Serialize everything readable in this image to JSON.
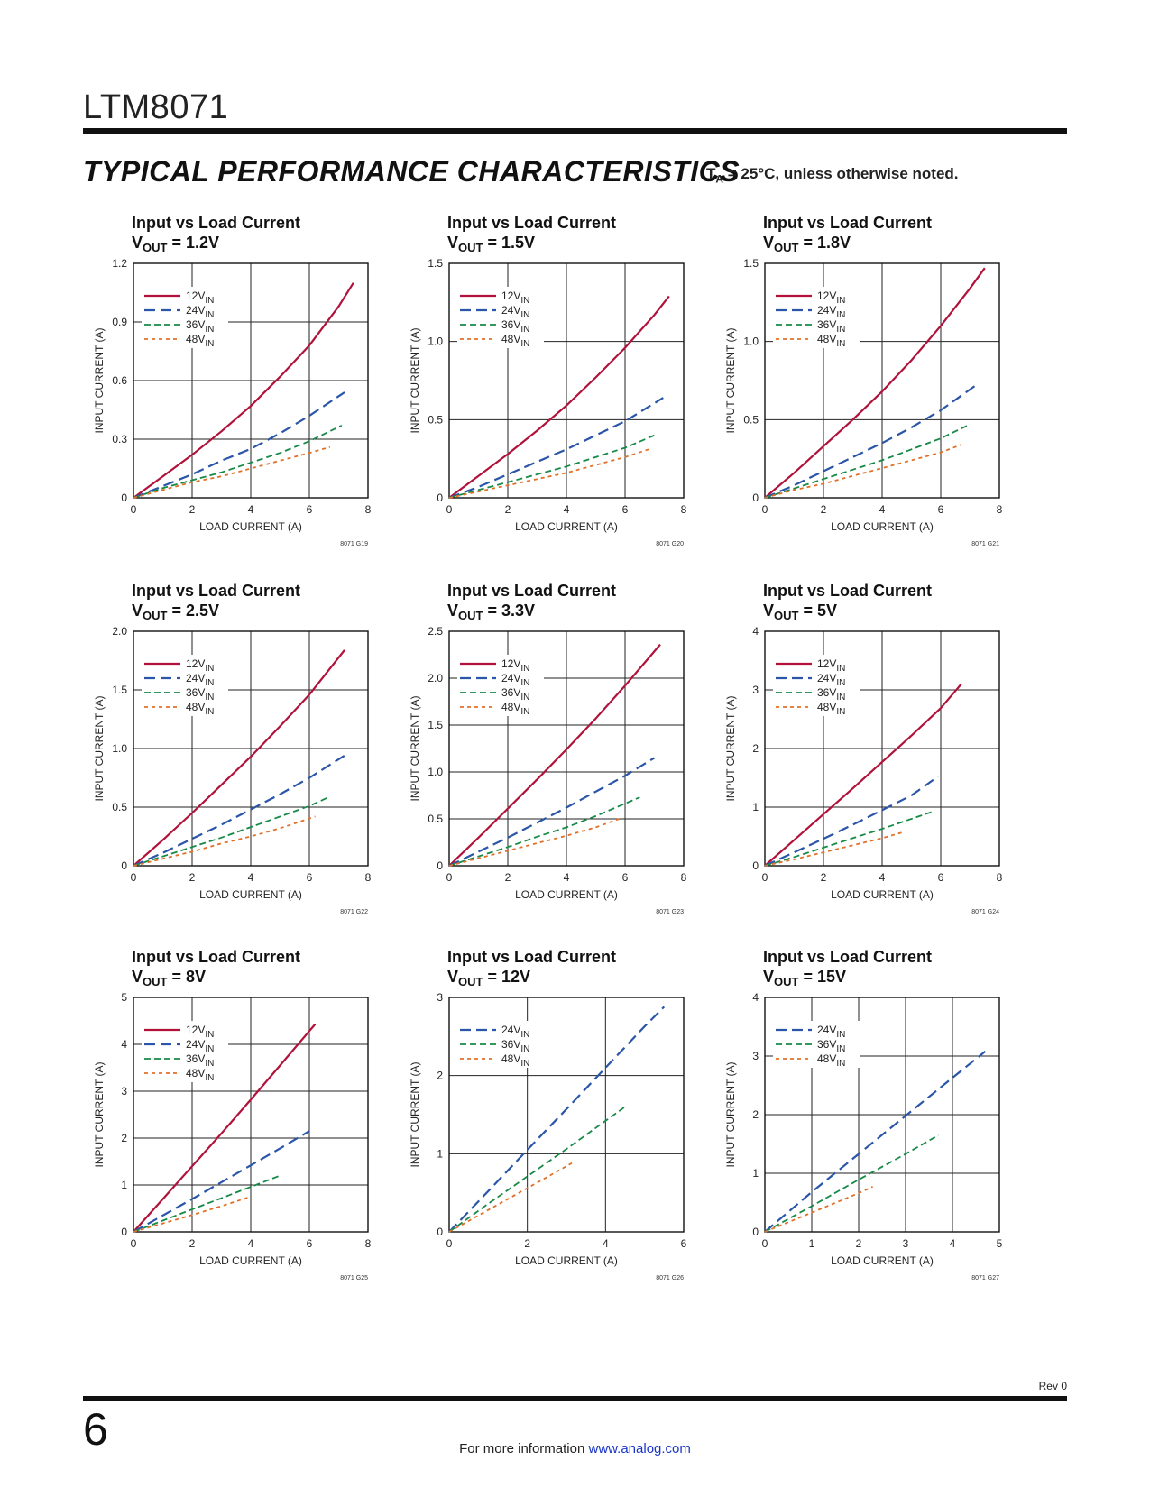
{
  "header": {
    "part_number": "LTM8071",
    "section_title": "TYPICAL PERFORMANCE CHARACTERISTICS",
    "conditions_main": "T",
    "conditions_sub": "A",
    "conditions_rest": " = 25°C, unless otherwise noted."
  },
  "colors": {
    "12VIN": "#b0123a",
    "24VIN": "#2a55a8",
    "36VIN": "#188a48",
    "48VIN": "#e07028"
  },
  "chart_data": [
    {
      "type": "line",
      "title": "Input vs Load Current",
      "vout": "1.2V",
      "xlabel": "LOAD CURRENT (A)",
      "ylabel": "INPUT CURRENT (A)",
      "xlim": [
        0,
        8
      ],
      "ylim": [
        0,
        1.2
      ],
      "xticks": [
        "0",
        "2",
        "4",
        "6",
        "8"
      ],
      "yticks": [
        "0",
        "0.3",
        "0.6",
        "0.9",
        "1.2"
      ],
      "code": "8071 G19",
      "series": [
        {
          "name": "12VIN",
          "x": [
            0,
            1,
            2,
            3,
            4,
            5,
            6,
            7,
            7.5
          ],
          "y": [
            0,
            0.11,
            0.22,
            0.34,
            0.47,
            0.62,
            0.78,
            0.98,
            1.1
          ]
        },
        {
          "name": "24VIN",
          "x": [
            0,
            1,
            2,
            3,
            4,
            5,
            6,
            7.2
          ],
          "y": [
            0,
            0.06,
            0.12,
            0.19,
            0.25,
            0.33,
            0.42,
            0.54
          ]
        },
        {
          "name": "36VIN",
          "x": [
            0,
            1,
            2,
            3,
            4,
            5,
            6,
            7.1
          ],
          "y": [
            0,
            0.05,
            0.09,
            0.13,
            0.18,
            0.23,
            0.29,
            0.37
          ]
        },
        {
          "name": "48VIN",
          "x": [
            0,
            1,
            2,
            3,
            4,
            5,
            6,
            6.7
          ],
          "y": [
            0,
            0.04,
            0.08,
            0.11,
            0.15,
            0.19,
            0.23,
            0.26
          ]
        }
      ]
    },
    {
      "type": "line",
      "title": "Input vs Load Current",
      "vout": "1.5V",
      "xlabel": "LOAD CURRENT (A)",
      "ylabel": "INPUT CURRENT (A)",
      "xlim": [
        0,
        8
      ],
      "ylim": [
        0,
        1.5
      ],
      "xticks": [
        "0",
        "2",
        "4",
        "6",
        "8"
      ],
      "yticks": [
        "0",
        "0.5",
        "1.0",
        "1.5"
      ],
      "code": "8071 G20",
      "series": [
        {
          "name": "12VIN",
          "x": [
            0,
            1,
            2,
            3,
            4,
            5,
            6,
            7,
            7.5
          ],
          "y": [
            0,
            0.14,
            0.28,
            0.43,
            0.59,
            0.77,
            0.96,
            1.17,
            1.29
          ]
        },
        {
          "name": "24VIN",
          "x": [
            0,
            1,
            2,
            3,
            4,
            5,
            6,
            7.3
          ],
          "y": [
            0,
            0.07,
            0.15,
            0.23,
            0.31,
            0.4,
            0.49,
            0.64
          ]
        },
        {
          "name": "36VIN",
          "x": [
            0,
            1,
            2,
            3,
            4,
            5,
            6,
            7
          ],
          "y": [
            0,
            0.05,
            0.1,
            0.15,
            0.2,
            0.26,
            0.32,
            0.4
          ]
        },
        {
          "name": "48VIN",
          "x": [
            0,
            1,
            2,
            3,
            4,
            5,
            6,
            6.8
          ],
          "y": [
            0,
            0.04,
            0.08,
            0.12,
            0.16,
            0.21,
            0.26,
            0.31
          ]
        }
      ]
    },
    {
      "type": "line",
      "title": "Input vs Load Current",
      "vout": "1.8V",
      "xlabel": "LOAD CURRENT (A)",
      "ylabel": "INPUT CURRENT (A)",
      "xlim": [
        0,
        8
      ],
      "ylim": [
        0,
        1.5
      ],
      "xticks": [
        "0",
        "2",
        "4",
        "6",
        "8"
      ],
      "yticks": [
        "0",
        "0.5",
        "1.0",
        "1.5"
      ],
      "code": "8071 G21",
      "series": [
        {
          "name": "12VIN",
          "x": [
            0,
            1,
            2,
            3,
            4,
            5,
            6,
            7,
            7.5
          ],
          "y": [
            0,
            0.16,
            0.33,
            0.5,
            0.68,
            0.88,
            1.1,
            1.34,
            1.47
          ]
        },
        {
          "name": "24VIN",
          "x": [
            0,
            1,
            2,
            3,
            4,
            5,
            6,
            7.2
          ],
          "y": [
            0,
            0.08,
            0.17,
            0.26,
            0.35,
            0.45,
            0.56,
            0.72
          ]
        },
        {
          "name": "36VIN",
          "x": [
            0,
            1,
            2,
            3,
            4,
            5,
            6,
            7
          ],
          "y": [
            0,
            0.06,
            0.12,
            0.18,
            0.24,
            0.31,
            0.38,
            0.47
          ]
        },
        {
          "name": "48VIN",
          "x": [
            0,
            1,
            2,
            3,
            4,
            5,
            6,
            6.7
          ],
          "y": [
            0,
            0.05,
            0.09,
            0.14,
            0.19,
            0.24,
            0.29,
            0.34
          ]
        }
      ]
    },
    {
      "type": "line",
      "title": "Input vs Load Current",
      "vout": "2.5V",
      "xlabel": "LOAD CURRENT (A)",
      "ylabel": "INPUT CURRENT (A)",
      "xlim": [
        0,
        8
      ],
      "ylim": [
        0,
        2.0
      ],
      "xticks": [
        "0",
        "2",
        "4",
        "6",
        "8"
      ],
      "yticks": [
        "0",
        "0.5",
        "1.0",
        "1.5",
        "2.0"
      ],
      "code": "8071 G22",
      "series": [
        {
          "name": "12VIN",
          "x": [
            0,
            1,
            2,
            3,
            4,
            5,
            6,
            7.2
          ],
          "y": [
            0,
            0.22,
            0.45,
            0.69,
            0.93,
            1.19,
            1.46,
            1.84
          ]
        },
        {
          "name": "24VIN",
          "x": [
            0,
            1,
            2,
            3,
            4,
            5,
            6,
            7.2
          ],
          "y": [
            0,
            0.11,
            0.23,
            0.35,
            0.48,
            0.61,
            0.75,
            0.94
          ]
        },
        {
          "name": "36VIN",
          "x": [
            0,
            1,
            2,
            3,
            4,
            5,
            6,
            6.7
          ],
          "y": [
            0,
            0.08,
            0.16,
            0.24,
            0.33,
            0.42,
            0.51,
            0.59
          ]
        },
        {
          "name": "48VIN",
          "x": [
            0,
            1,
            2,
            3,
            4,
            5,
            6.2
          ],
          "y": [
            0,
            0.06,
            0.12,
            0.19,
            0.25,
            0.32,
            0.42
          ]
        }
      ]
    },
    {
      "type": "line",
      "title": "Input vs Load Current",
      "vout": "3.3V",
      "xlabel": "LOAD CURRENT (A)",
      "ylabel": "INPUT CURRENT (A)",
      "xlim": [
        0,
        8
      ],
      "ylim": [
        0,
        2.5
      ],
      "xticks": [
        "0",
        "2",
        "4",
        "6",
        "8"
      ],
      "yticks": [
        "0",
        "0.5",
        "1.0",
        "1.5",
        "2.0",
        "2.5"
      ],
      "code": "8071 G23",
      "series": [
        {
          "name": "12VIN",
          "x": [
            0,
            1,
            2,
            3,
            4,
            5,
            6,
            7.2
          ],
          "y": [
            0,
            0.3,
            0.61,
            0.92,
            1.24,
            1.57,
            1.92,
            2.36
          ]
        },
        {
          "name": "24VIN",
          "x": [
            0,
            1,
            2,
            3,
            4,
            5,
            6,
            7
          ],
          "y": [
            0,
            0.15,
            0.3,
            0.46,
            0.62,
            0.79,
            0.96,
            1.15
          ]
        },
        {
          "name": "36VIN",
          "x": [
            0,
            1,
            2,
            3,
            4,
            5,
            6.5
          ],
          "y": [
            0,
            0.1,
            0.2,
            0.31,
            0.41,
            0.53,
            0.73
          ]
        },
        {
          "name": "48VIN",
          "x": [
            0,
            1,
            2,
            3,
            4,
            5,
            5.8
          ],
          "y": [
            0,
            0.08,
            0.16,
            0.24,
            0.32,
            0.41,
            0.5
          ]
        }
      ]
    },
    {
      "type": "line",
      "title": "Input vs Load Current",
      "vout": "5V",
      "xlabel": "LOAD CURRENT (A)",
      "ylabel": "INPUT CURRENT (A)",
      "xlim": [
        0,
        8
      ],
      "ylim": [
        0,
        4
      ],
      "xticks": [
        "0",
        "2",
        "4",
        "6",
        "8"
      ],
      "yticks": [
        "0",
        "1",
        "2",
        "3",
        "4"
      ],
      "code": "8071 G24",
      "series": [
        {
          "name": "12VIN",
          "x": [
            0,
            1,
            2,
            3,
            4,
            5,
            6,
            6.7
          ],
          "y": [
            0,
            0.44,
            0.88,
            1.32,
            1.77,
            2.22,
            2.69,
            3.1
          ]
        },
        {
          "name": "24VIN",
          "x": [
            0,
            1,
            2,
            3,
            4,
            5,
            5.9
          ],
          "y": [
            0,
            0.23,
            0.46,
            0.7,
            0.95,
            1.2,
            1.52
          ]
        },
        {
          "name": "36VIN",
          "x": [
            0,
            1,
            2,
            3,
            4,
            5,
            5.7
          ],
          "y": [
            0,
            0.15,
            0.31,
            0.47,
            0.63,
            0.8,
            0.92
          ]
        },
        {
          "name": "48VIN",
          "x": [
            0,
            1,
            2,
            3,
            4,
            4.7
          ],
          "y": [
            0,
            0.11,
            0.23,
            0.35,
            0.47,
            0.57
          ]
        }
      ]
    },
    {
      "type": "line",
      "title": "Input vs Load Current",
      "vout": "8V",
      "xlabel": "LOAD CURRENT (A)",
      "ylabel": "INPUT CURRENT (A)",
      "xlim": [
        0,
        8
      ],
      "ylim": [
        0,
        5
      ],
      "xticks": [
        "0",
        "2",
        "4",
        "6",
        "8"
      ],
      "yticks": [
        "0",
        "1",
        "2",
        "3",
        "4",
        "5"
      ],
      "code": "8071 G25",
      "series": [
        {
          "name": "12VIN",
          "x": [
            0,
            1,
            2,
            3,
            4,
            5,
            6.2
          ],
          "y": [
            0,
            0.7,
            1.4,
            2.1,
            2.82,
            3.55,
            4.43
          ]
        },
        {
          "name": "24VIN",
          "x": [
            0,
            1,
            2,
            3,
            4,
            5,
            6
          ],
          "y": [
            0,
            0.35,
            0.7,
            1.06,
            1.42,
            1.78,
            2.15
          ]
        },
        {
          "name": "36VIN",
          "x": [
            0,
            1,
            2,
            3,
            4,
            5
          ],
          "y": [
            0,
            0.24,
            0.48,
            0.72,
            0.96,
            1.2
          ]
        },
        {
          "name": "48VIN",
          "x": [
            0,
            1,
            2,
            3,
            4
          ],
          "y": [
            0,
            0.18,
            0.36,
            0.55,
            0.75
          ]
        }
      ]
    },
    {
      "type": "line",
      "title": "Input vs Load Current",
      "vout": "12V",
      "xlabel": "LOAD CURRENT (A)",
      "ylabel": "INPUT CURRENT (A)",
      "xlim": [
        0,
        6
      ],
      "ylim": [
        0,
        3
      ],
      "xticks": [
        "0",
        "2",
        "4",
        "6"
      ],
      "yticks": [
        "0",
        "1",
        "2",
        "3"
      ],
      "code": "8071 G26",
      "series": [
        {
          "name": "24VIN",
          "x": [
            0,
            1,
            2,
            3,
            4,
            5,
            5.5
          ],
          "y": [
            0,
            0.52,
            1.05,
            1.57,
            2.1,
            2.63,
            2.88
          ]
        },
        {
          "name": "36VIN",
          "x": [
            0,
            1,
            2,
            3,
            4,
            4.5
          ],
          "y": [
            0,
            0.36,
            0.71,
            1.06,
            1.42,
            1.6
          ]
        },
        {
          "name": "48VIN",
          "x": [
            0,
            1,
            2,
            3,
            3.2
          ],
          "y": [
            0,
            0.28,
            0.56,
            0.84,
            0.9
          ]
        }
      ]
    },
    {
      "type": "line",
      "title": "Input vs Load Current",
      "vout": "15V",
      "xlabel": "LOAD CURRENT (A)",
      "ylabel": "INPUT CURRENT (A)",
      "xlim": [
        0,
        5
      ],
      "ylim": [
        0,
        4
      ],
      "xticks": [
        "0",
        "1",
        "2",
        "3",
        "4",
        "5"
      ],
      "yticks": [
        "0",
        "1",
        "2",
        "3",
        "4"
      ],
      "code": "8071 G27",
      "series": [
        {
          "name": "24VIN",
          "x": [
            0,
            1,
            2,
            3,
            4,
            4.7
          ],
          "y": [
            0,
            0.68,
            1.33,
            1.98,
            2.63,
            3.08
          ]
        },
        {
          "name": "36VIN",
          "x": [
            0,
            1,
            2,
            3,
            3.7
          ],
          "y": [
            0,
            0.44,
            0.89,
            1.33,
            1.65
          ]
        },
        {
          "name": "48VIN",
          "x": [
            0,
            1,
            2,
            2.3
          ],
          "y": [
            0,
            0.33,
            0.66,
            0.77
          ]
        }
      ]
    }
  ],
  "footer": {
    "rev": "Rev 0",
    "page_number": "6",
    "more_info_text": "For more information ",
    "more_info_link": "www.analog.com"
  }
}
